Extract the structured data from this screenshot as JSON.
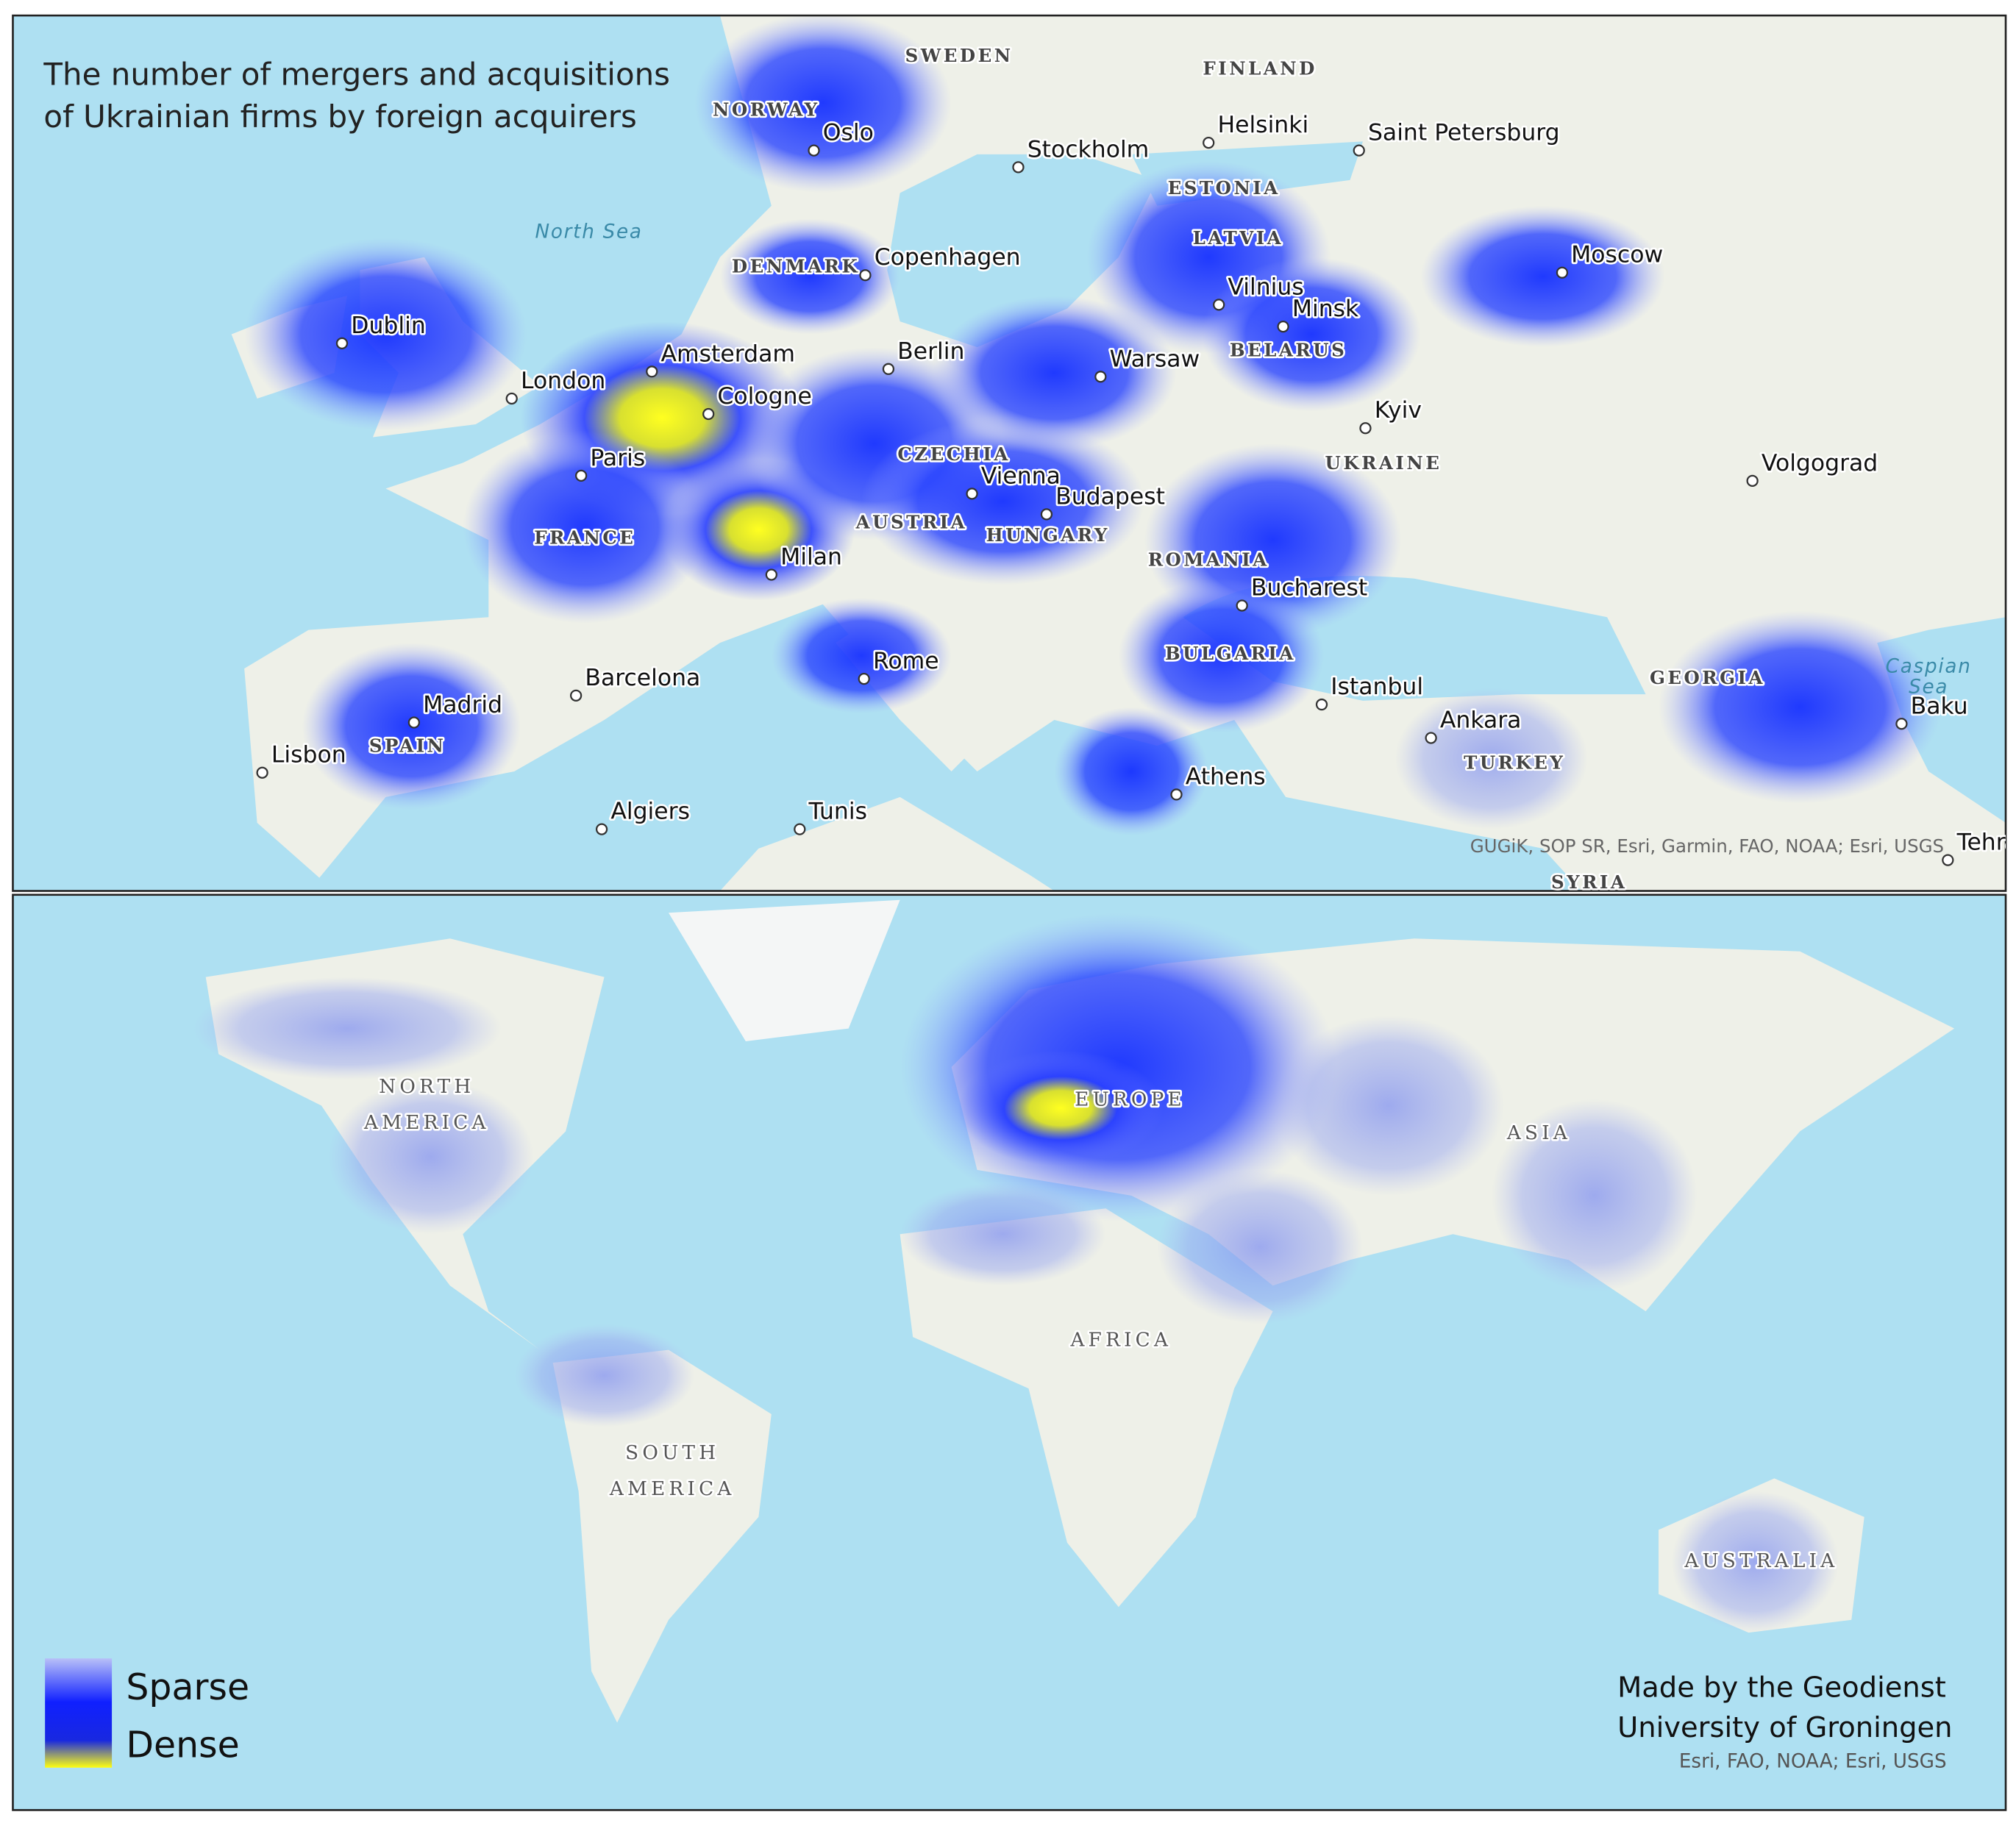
{
  "europe_map": {
    "title": [
      "The number of mergers and acquisitions",
      "of Ukrainian firms by foreign acquirers"
    ],
    "countries": [
      "SWEDEN",
      "FINLAND",
      "NORWAY",
      "ESTONIA",
      "LATVIA",
      "DENMARK",
      "BELARUS",
      "UKRAINE",
      "CZECHIA",
      "AUSTRIA",
      "HUNGARY",
      "FRANCE",
      "ROMANIA",
      "BULGARIA",
      "SPAIN",
      "GEORGIA",
      "TURKEY",
      "SYRIA"
    ],
    "cities": [
      "Oslo",
      "Stockholm",
      "Helsinki",
      "Saint Petersburg",
      "Copenhagen",
      "Moscow",
      "Dublin",
      "Amsterdam",
      "Berlin",
      "Vilnius",
      "Minsk",
      "London",
      "Warsaw",
      "Cologne",
      "Kyiv",
      "Paris",
      "Volgograd",
      "Vienna",
      "Budapest",
      "Milan",
      "Bucharest",
      "Rome",
      "Barcelona",
      "Istanbul",
      "Madrid",
      "Baku",
      "Ankara",
      "Lisbon",
      "Athens",
      "Algiers",
      "Tunis",
      "Tehran"
    ],
    "seas": [
      [
        "North Sea"
      ],
      [
        "Caspian",
        "Sea"
      ]
    ],
    "attribution": "GUGiK, SOP SR, Esri, Garmin, FAO, NOAA; Esri, USGS"
  },
  "world_map": {
    "continents": [
      [
        "NORTH",
        "AMERICA"
      ],
      [
        "EUROPE"
      ],
      [
        "ASIA"
      ],
      [
        "AFRICA"
      ],
      [
        "SOUTH",
        "AMERICA"
      ],
      [
        "AUSTRALIA"
      ]
    ],
    "legend": [
      "Sparse",
      "Dense"
    ],
    "credit": [
      "Made by the Geodienst",
      "University of Groningen"
    ],
    "attribution": "Esri, FAO, NOAA; Esri, USGS"
  }
}
